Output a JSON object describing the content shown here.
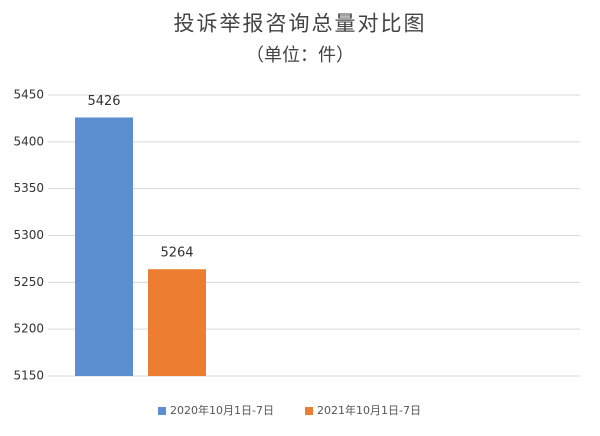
{
  "chart_data": {
    "type": "bar",
    "title": "投诉举报咨询总量对比图",
    "subtitle": "（单位：件）",
    "categories": [
      null
    ],
    "series": [
      {
        "name": "2020年10月1日-7日",
        "color": "#5b8fd0",
        "values": [
          5426
        ]
      },
      {
        "name": "2021年10月1日-7日",
        "color": "#ed7d31",
        "values": [
          5264
        ]
      }
    ],
    "ylim": [
      5150,
      5450
    ],
    "yticks": [
      5150,
      5200,
      5250,
      5300,
      5350,
      5400,
      5450
    ],
    "grid": true,
    "legend": "bottom",
    "data_labels": true
  }
}
